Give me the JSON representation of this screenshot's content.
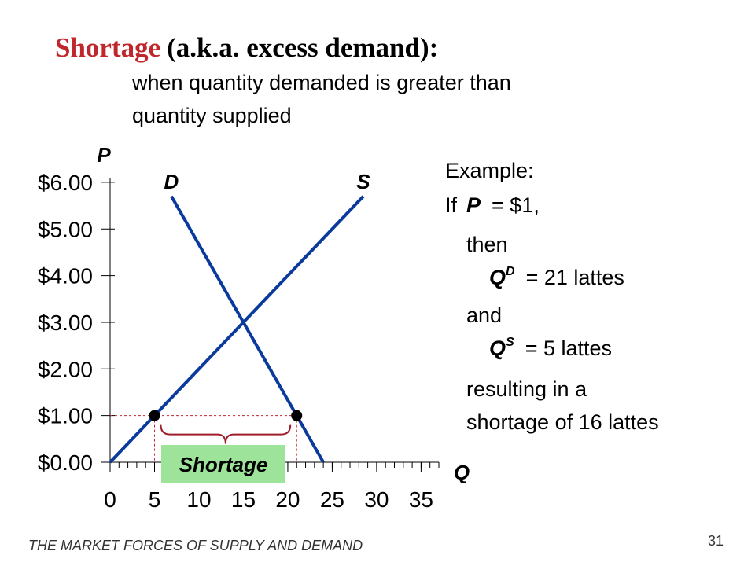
{
  "title": {
    "term": "Shortage",
    "rest": "(a.k.a. excess demand):"
  },
  "subtitle": [
    "when quantity demanded is greater than",
    "quantity supplied"
  ],
  "chart_data": {
    "type": "line",
    "xlabel": "Q",
    "ylabel": "P",
    "xlim": [
      0,
      37
    ],
    "ylim": [
      0,
      6.1
    ],
    "xticks": [
      0,
      5,
      10,
      15,
      20,
      25,
      30,
      35
    ],
    "yticks": [
      {
        "value": 0,
        "label": "$0.00"
      },
      {
        "value": 1,
        "label": "$1.00"
      },
      {
        "value": 2,
        "label": "$2.00"
      },
      {
        "value": 3,
        "label": "$3.00"
      },
      {
        "value": 4,
        "label": "$4.00"
      },
      {
        "value": 5,
        "label": "$5.00"
      },
      {
        "value": 6,
        "label": "$6.00"
      }
    ],
    "series": [
      {
        "name": "D",
        "color": "#0a3a9c",
        "x": [
          6.9,
          24
        ],
        "values": [
          5.7,
          0
        ]
      },
      {
        "name": "S",
        "color": "#0a3a9c",
        "x": [
          0,
          28.5
        ],
        "values": [
          0,
          5.7
        ]
      }
    ],
    "markers": {
      "x": [
        5,
        21
      ],
      "values": [
        1,
        1
      ]
    },
    "annotation": "Shortage"
  },
  "example": {
    "heading": "Example:",
    "condition": [
      "If",
      "P",
      "=  $1,"
    ],
    "then": "then",
    "qd": [
      "Q",
      "D",
      "=  21 lattes"
    ],
    "and": "and",
    "qs": [
      "Q",
      "S",
      "=  5 lattes"
    ],
    "result": [
      "resulting in a",
      "shortage of 16 lattes"
    ]
  },
  "footer": "THE MARKET FORCES OF SUPPLY AND DEMAND",
  "page": "31"
}
